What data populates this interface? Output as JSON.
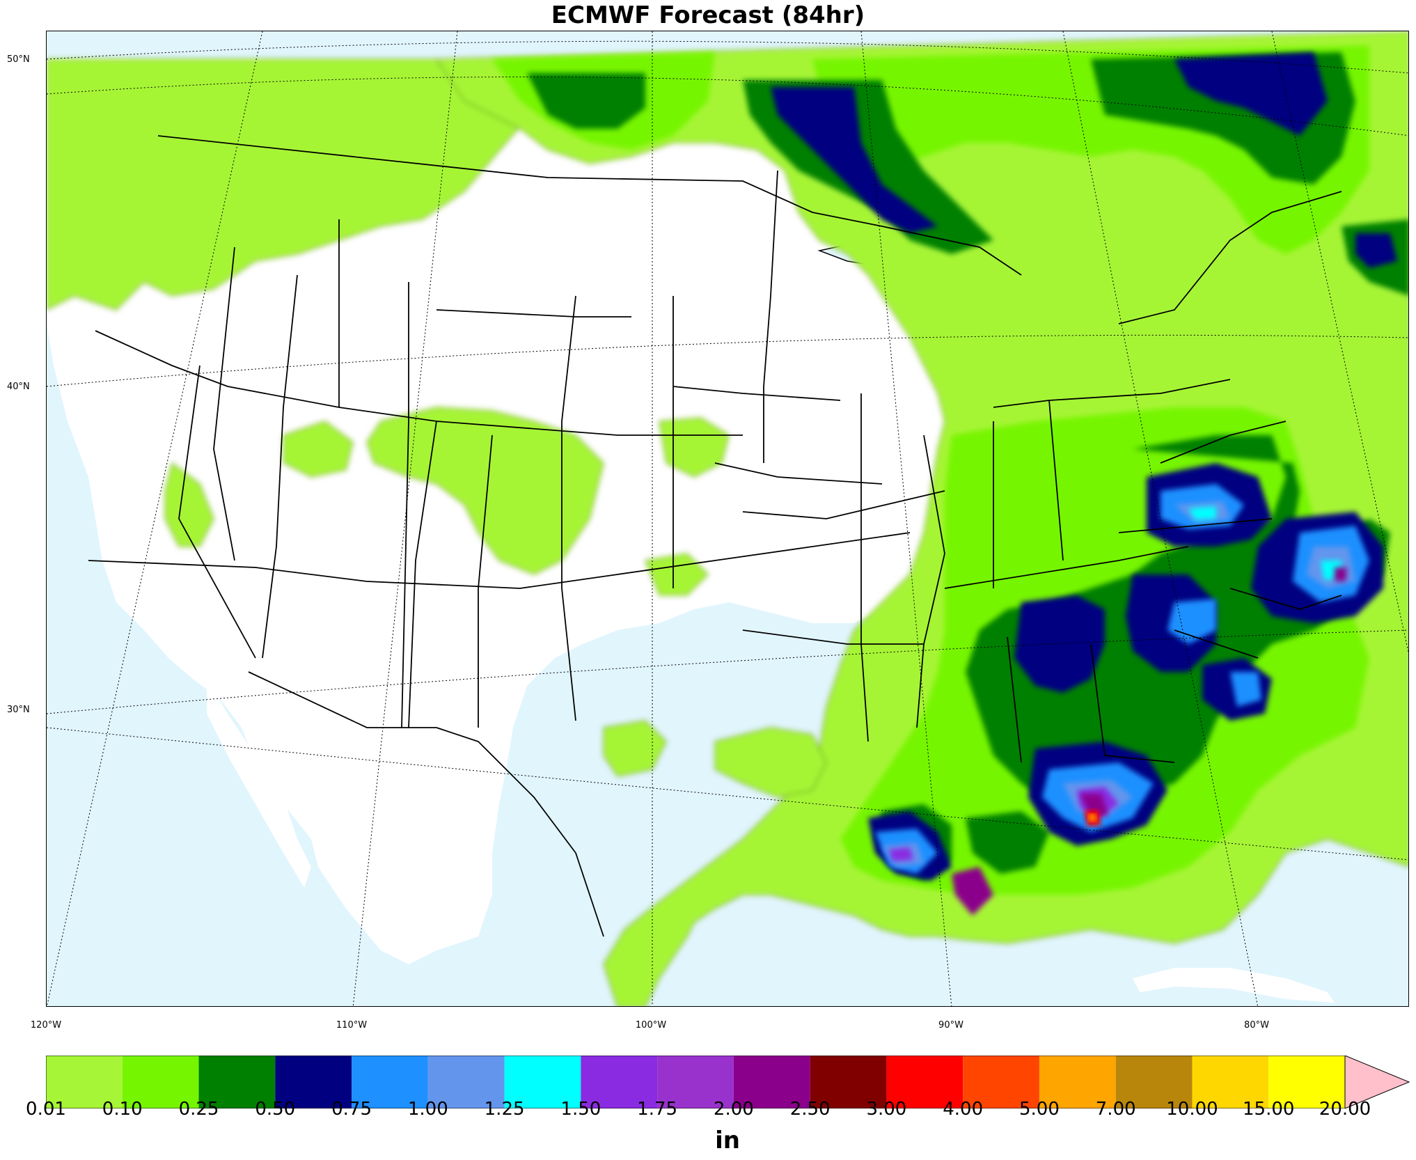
{
  "title": "ECMWF Forecast (84hr)",
  "lat_labels": [
    {
      "text": "50°N",
      "lat": 50
    },
    {
      "text": "40°N",
      "lat": 40
    },
    {
      "text": "30°N",
      "lat": 30
    }
  ],
  "lon_labels": [
    {
      "text": "120°W",
      "lon": -120
    },
    {
      "text": "110°W",
      "lon": -110
    },
    {
      "text": "100°W",
      "lon": -100
    },
    {
      "text": "90°W",
      "lon": -90
    },
    {
      "text": "80°W",
      "lon": -80
    }
  ],
  "colorbar": {
    "units": "in",
    "levels": [
      "0.01",
      "0.10",
      "0.25",
      "0.50",
      "0.75",
      "1.00",
      "1.25",
      "1.50",
      "1.75",
      "2.00",
      "2.50",
      "3.00",
      "4.00",
      "5.00",
      "7.00",
      "10.00",
      "15.00",
      "20.00"
    ],
    "colors": [
      "#a6f536",
      "#76f500",
      "#008000",
      "#000080",
      "#1e90ff",
      "#6495ed",
      "#00ffff",
      "#8a2be2",
      "#9932cc",
      "#8b008b",
      "#800000",
      "#ff0000",
      "#ff4500",
      "#ffa500",
      "#b8860b",
      "#ffd700",
      "#ffff00"
    ],
    "extend_color": "#ffc0cb"
  },
  "colors": {
    "ocean": "#e1f5fd",
    "land": "#ffffff"
  }
}
